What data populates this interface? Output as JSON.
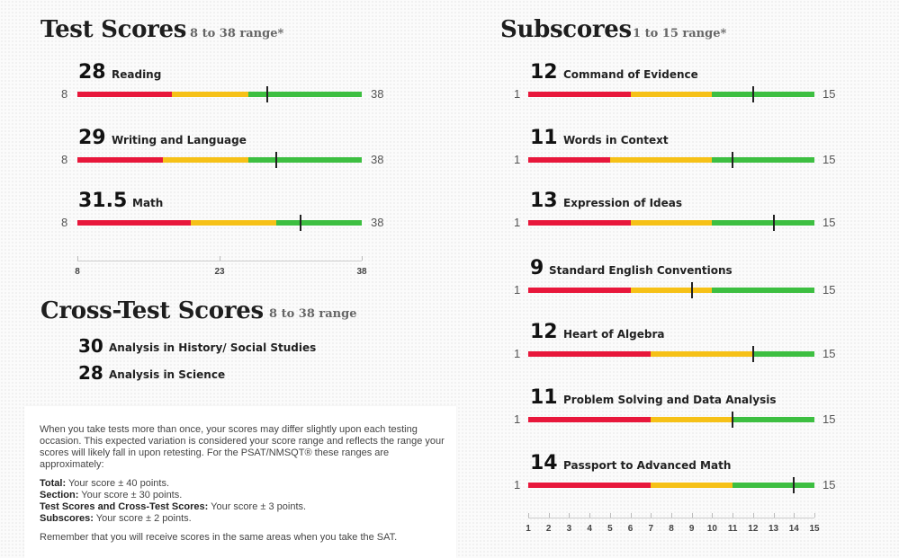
{
  "test_scores": {
    "title": "Test Scores",
    "range_label": "8 to 38 range*",
    "min_label": "8",
    "max_label": "38",
    "scale": {
      "min": 8,
      "max": 38
    },
    "items": [
      {
        "score": "28",
        "value": 28,
        "name": "Reading",
        "red_end": 18,
        "yellow_end": 26
      },
      {
        "score": "29",
        "value": 29,
        "name": "Writing and Language",
        "red_end": 17,
        "yellow_end": 26
      },
      {
        "score": "31.5",
        "value": 31.5,
        "name": "Math",
        "red_end": 20,
        "yellow_end": 29
      }
    ],
    "axis_ticks": [
      "8",
      "23",
      "38"
    ]
  },
  "cross_test_scores": {
    "title": "Cross-Test Scores",
    "range_label": "8 to 38 range",
    "items": [
      {
        "score": "30",
        "name": "Analysis in History/ Social Studies"
      },
      {
        "score": "28",
        "name": "Analysis in Science"
      }
    ]
  },
  "note": {
    "paragraph1": "When you take tests more than once, your scores may differ slightly upon each testing occasion. This expected variation is considered your score range and reflects the range your scores will likely fall in upon retesting. For the PSAT/NMSQT® these ranges are approximately:",
    "ranges": [
      {
        "label": "Total:",
        "text": " Your score ± 40 points."
      },
      {
        "label": "Section:",
        "text": " Your score ± 30 points."
      },
      {
        "label": "Test Scores and Cross-Test Scores:",
        "text": " Your score ± 3 points."
      },
      {
        "label": "Subscores:",
        "text": " Your score ± 2 points."
      }
    ],
    "paragraph2": "Remember that you will receive scores in the same areas when you take the SAT."
  },
  "subscores": {
    "title": "Subscores",
    "range_label": "1 to 15 range*",
    "min_label": "1",
    "max_label": "15",
    "scale": {
      "min": 1,
      "max": 15
    },
    "items": [
      {
        "score": "12",
        "value": 12,
        "name": "Command of Evidence",
        "red_end": 6,
        "yellow_end": 10
      },
      {
        "score": "11",
        "value": 11,
        "name": "Words in Context",
        "red_end": 5,
        "yellow_end": 10
      },
      {
        "score": "13",
        "value": 13,
        "name": "Expression of Ideas",
        "red_end": 6,
        "yellow_end": 10
      },
      {
        "score": "9",
        "value": 9,
        "name": "Standard English Conventions",
        "red_end": 6,
        "yellow_end": 10
      },
      {
        "score": "12",
        "value": 12,
        "name": "Heart of Algebra",
        "red_end": 7,
        "yellow_end": 12
      },
      {
        "score": "11",
        "value": 11,
        "name": "Problem Solving and Data Analysis",
        "red_end": 7,
        "yellow_end": 11
      },
      {
        "score": "14",
        "value": 14,
        "name": "Passport to Advanced Math",
        "red_end": 7,
        "yellow_end": 11
      }
    ],
    "axis_ticks": [
      "1",
      "2",
      "3",
      "4",
      "5",
      "6",
      "7",
      "8",
      "9",
      "10",
      "11",
      "12",
      "13",
      "14",
      "15"
    ]
  },
  "colors": {
    "below": "#e8173b",
    "approaching": "#f6c117",
    "meets": "#3dbf41",
    "marker": "#222222"
  }
}
